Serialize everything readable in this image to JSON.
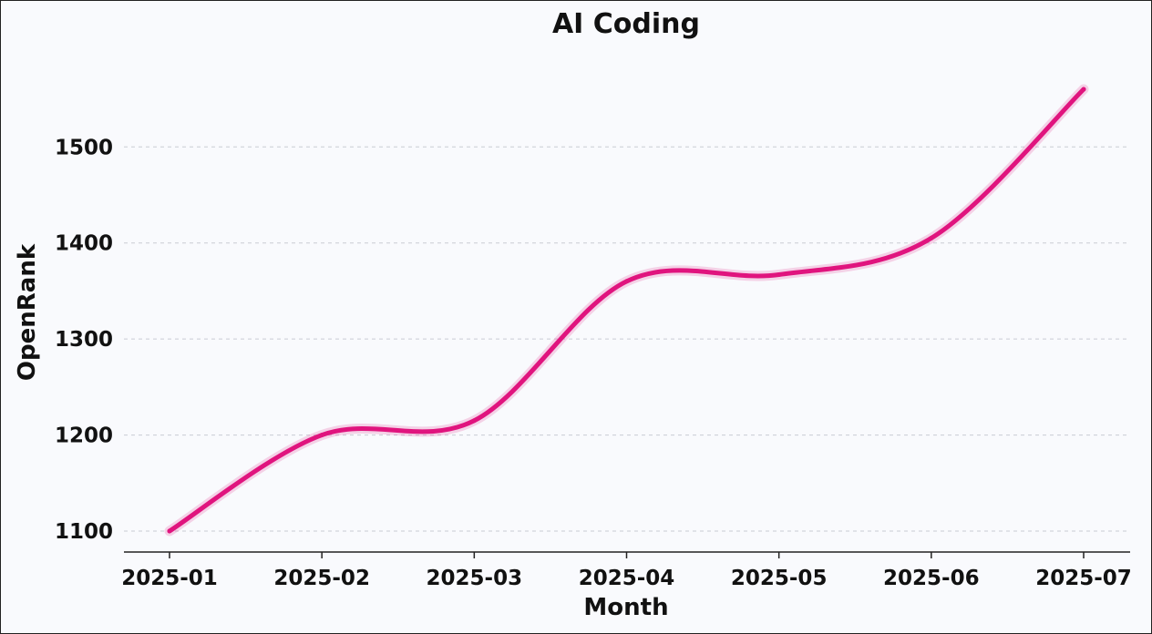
{
  "chart_data": {
    "type": "line",
    "title": "AI Coding",
    "xlabel": "Month",
    "ylabel": "OpenRank",
    "categories": [
      "2025-01",
      "2025-02",
      "2025-03",
      "2025-04",
      "2025-05",
      "2025-06",
      "2025-07"
    ],
    "y_ticks": [
      1100,
      1200,
      1300,
      1400,
      1500
    ],
    "ylim": [
      1078,
      1578
    ],
    "grid": "horizontal dashed",
    "series": [
      {
        "values": [
          1100,
          1200,
          1215,
          1360,
          1367,
          1405,
          1560
        ],
        "color": "#e0147e"
      }
    ]
  }
}
